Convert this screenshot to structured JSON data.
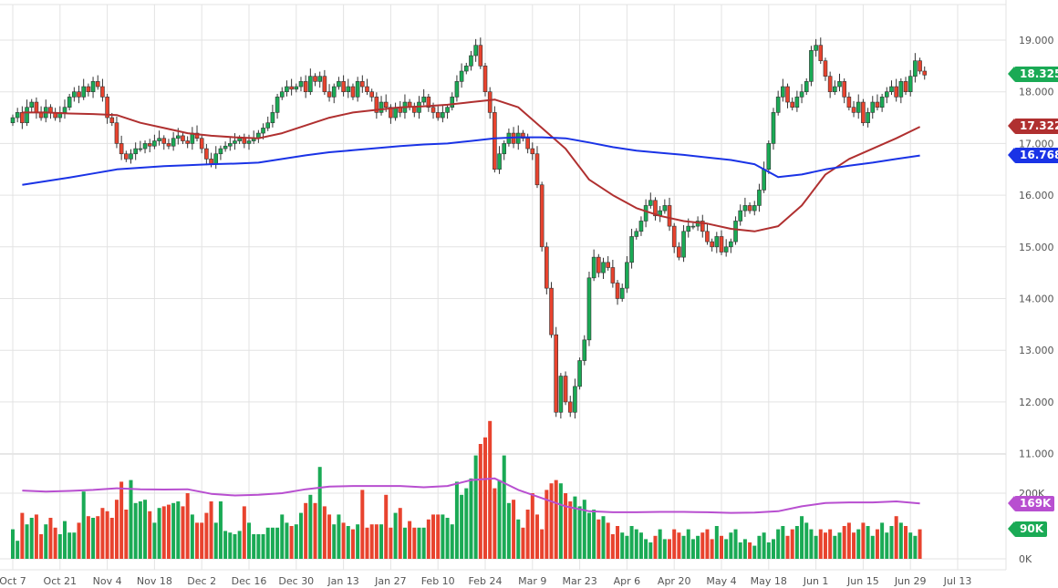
{
  "chart_data": {
    "type": "candlestick",
    "title": "",
    "price_axis": {
      "ticks": [
        "19.000",
        "18.000",
        "17.000",
        "16.000",
        "15.000",
        "14.000",
        "13.000",
        "12.000",
        "11.000"
      ],
      "range": [
        11,
        19
      ]
    },
    "volume_axis": {
      "ticks": [
        "200K",
        "0K"
      ]
    },
    "x_ticks": [
      "Oct 7",
      "Oct 21",
      "Nov 4",
      "Nov 18",
      "Dec 2",
      "Dec 16",
      "Dec 30",
      "Jan 13",
      "Jan 27",
      "Feb 10",
      "Feb 24",
      "Mar 9",
      "Mar 23",
      "Apr 6",
      "Apr 20",
      "May 4",
      "May 18",
      "Jun 1",
      "Jun 15",
      "Jun 29",
      "Jul 13"
    ],
    "first_open": 17.4,
    "closes": [
      17.5,
      17.6,
      17.4,
      17.7,
      17.8,
      17.6,
      17.5,
      17.7,
      17.6,
      17.5,
      17.6,
      17.7,
      17.9,
      18.0,
      17.9,
      18.1,
      18.0,
      18.2,
      18.1,
      17.9,
      17.5,
      17.4,
      17.0,
      16.8,
      16.7,
      16.8,
      16.9,
      16.9,
      17.0,
      16.95,
      17.05,
      17.1,
      17.0,
      16.95,
      17.1,
      17.15,
      17.05,
      17.0,
      17.2,
      17.1,
      16.9,
      16.7,
      16.6,
      16.8,
      16.9,
      16.95,
      17.0,
      17.05,
      17.1,
      17.0,
      17.05,
      17.1,
      17.2,
      17.3,
      17.4,
      17.6,
      17.9,
      18.0,
      18.1,
      18.05,
      18.1,
      18.2,
      18.0,
      18.3,
      18.2,
      18.3,
      18.0,
      17.9,
      18.1,
      18.2,
      18.0,
      18.1,
      17.9,
      18.2,
      18.1,
      18.0,
      17.9,
      17.6,
      17.8,
      17.7,
      17.5,
      17.7,
      17.6,
      17.8,
      17.7,
      17.6,
      17.8,
      17.9,
      17.7,
      17.6,
      17.5,
      17.6,
      17.7,
      17.9,
      18.2,
      18.4,
      18.5,
      18.7,
      18.9,
      18.5,
      18.0,
      17.6,
      16.5,
      16.8,
      17.0,
      17.2,
      17.0,
      17.2,
      17.1,
      16.9,
      16.8,
      16.2,
      15.0,
      14.2,
      13.3,
      11.8,
      12.5,
      12.0,
      11.8,
      12.3,
      12.8,
      13.2,
      14.4,
      14.8,
      14.5,
      14.7,
      14.6,
      14.3,
      14.0,
      14.2,
      14.7,
      15.2,
      15.3,
      15.5,
      15.8,
      15.9,
      15.6,
      15.7,
      15.8,
      15.4,
      15.0,
      14.8,
      15.3,
      15.4,
      15.4,
      15.5,
      15.3,
      15.1,
      15.0,
      15.2,
      14.9,
      15.0,
      15.1,
      15.5,
      15.7,
      15.8,
      15.7,
      15.8,
      16.1,
      16.5,
      17.0,
      17.6,
      17.9,
      18.1,
      17.8,
      17.7,
      17.9,
      18.0,
      18.2,
      18.8,
      18.9,
      18.6,
      18.3,
      18.0,
      18.1,
      18.2,
      17.9,
      17.7,
      17.6,
      17.8,
      17.4,
      17.6,
      17.8,
      17.7,
      17.9,
      18.0,
      18.1,
      17.9,
      18.2,
      18.0,
      18.3,
      18.6,
      18.4,
      18.325
    ],
    "volume_k": [
      90,
      55,
      140,
      105,
      125,
      135,
      75,
      105,
      125,
      95,
      75,
      115,
      80,
      80,
      110,
      205,
      130,
      125,
      130,
      155,
      145,
      125,
      180,
      235,
      150,
      240,
      170,
      175,
      180,
      145,
      110,
      155,
      160,
      165,
      170,
      175,
      160,
      200,
      135,
      110,
      110,
      140,
      175,
      110,
      175,
      85,
      80,
      75,
      85,
      160,
      110,
      75,
      75,
      75,
      95,
      95,
      95,
      135,
      110,
      100,
      105,
      140,
      170,
      195,
      170,
      280,
      160,
      135,
      105,
      135,
      110,
      100,
      90,
      105,
      210,
      95,
      105,
      105,
      105,
      195,
      95,
      140,
      155,
      95,
      115,
      95,
      95,
      95,
      120,
      135,
      135,
      135,
      125,
      105,
      235,
      195,
      215,
      245,
      315,
      350,
      370,
      420,
      215,
      240,
      315,
      170,
      180,
      120,
      95,
      150,
      200,
      135,
      90,
      210,
      230,
      240,
      230,
      200,
      175,
      190,
      160,
      180,
      140,
      150,
      120,
      130,
      110,
      75,
      100,
      80,
      70,
      100,
      90,
      80,
      60,
      50,
      70,
      90,
      60,
      60,
      90,
      80,
      70,
      90,
      60,
      70,
      80,
      90,
      60,
      100,
      70,
      60,
      80,
      90,
      50,
      60,
      50,
      40,
      70,
      80,
      50,
      60,
      90,
      100,
      70,
      90,
      100,
      130,
      110,
      90,
      70,
      90,
      80,
      90,
      70,
      80,
      100,
      110,
      80,
      90,
      110,
      100,
      70,
      90,
      110,
      80,
      100,
      130,
      110,
      100,
      80,
      70,
      90
    ],
    "series": [
      {
        "name": "",
        "kind": "moving-average",
        "color": "#b03030",
        "weekly": [
          17.6,
          17.6,
          17.58,
          17.57,
          17.55,
          17.4,
          17.3,
          17.2,
          17.15,
          17.12,
          17.1,
          17.2,
          17.35,
          17.5,
          17.6,
          17.65,
          17.7,
          17.72,
          17.75,
          17.8,
          17.85,
          17.7,
          17.3,
          16.9,
          16.3,
          16.0,
          15.75,
          15.6,
          15.5,
          15.45,
          15.35,
          15.3,
          15.4,
          15.8,
          16.4,
          16.7,
          16.9,
          17.1,
          17.322
        ],
        "last_label": "17.322"
      },
      {
        "name": "",
        "kind": "moving-average",
        "color": "#1a33e6",
        "weekly": [
          16.2,
          16.27,
          16.34,
          16.42,
          16.5,
          16.53,
          16.56,
          16.58,
          16.6,
          16.61,
          16.63,
          16.7,
          16.77,
          16.83,
          16.87,
          16.91,
          16.95,
          16.98,
          17.0,
          17.05,
          17.1,
          17.12,
          17.12,
          17.1,
          17.02,
          16.93,
          16.86,
          16.82,
          16.78,
          16.73,
          16.68,
          16.6,
          16.35,
          16.4,
          16.5,
          16.57,
          16.63,
          16.7,
          16.768
        ],
        "last_label": "16.768"
      },
      {
        "name": "",
        "kind": "volume-average",
        "color": "#b84fd0",
        "weekly": [
          208,
          205,
          207,
          210,
          215,
          212,
          211,
          212,
          198,
          193,
          195,
          200,
          212,
          220,
          222,
          222,
          222,
          218,
          222,
          240,
          245,
          210,
          185,
          160,
          145,
          142,
          142,
          143,
          143,
          142,
          140,
          141,
          145,
          160,
          170,
          172,
          172,
          175,
          169
        ],
        "last_label": "169K"
      }
    ],
    "last_price_label": "18.325",
    "last_volume_label": "90K",
    "colors": {
      "up": "#1aaa55",
      "down": "#e8432e",
      "grid": "#e3e3e3"
    },
    "grid": true
  }
}
